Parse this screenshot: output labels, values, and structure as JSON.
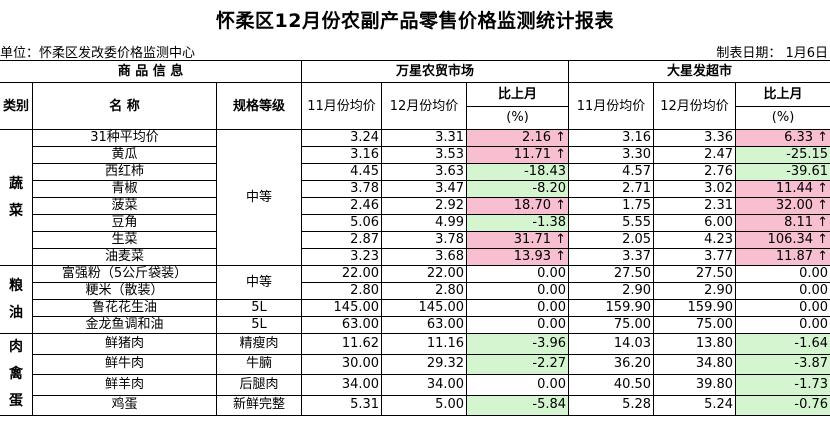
{
  "title": "怀柔区12月份农副产品零售价格监测统计报表",
  "unit": "单位：怀柔区发改委价格监测中心",
  "date": "制表日期：  1月6日",
  "headers": {
    "product_info": "商 品 信 息",
    "market1": "万星农贸市场",
    "market2": "大星发超市",
    "category": "类别",
    "name": "名 称",
    "grade": "规格等级",
    "nov_price": "11月份均价",
    "dec_price": "12月份均价",
    "change_line1": "比上月",
    "change_line2": "(%)"
  },
  "categories": {
    "veg": [
      "蔬",
      "菜"
    ],
    "grain": [
      "粮",
      "油"
    ],
    "meat": [
      "肉",
      "禽",
      "蛋"
    ]
  },
  "grades": {
    "veg": "中等",
    "grain": "中等"
  },
  "rows": [
    {
      "name": "31种平均价",
      "grade": "",
      "m1_nov": "3.24",
      "m1_dec": "3.31",
      "m1_chg": "2.16 ↑",
      "m2_nov": "3.16",
      "m2_dec": "3.36",
      "m2_chg": "6.33 ↑"
    },
    {
      "name": "黄瓜",
      "grade": "",
      "m1_nov": "3.16",
      "m1_dec": "3.53",
      "m1_chg": "11.71 ↑",
      "m2_nov": "3.30",
      "m2_dec": "2.47",
      "m2_chg": "-25.15"
    },
    {
      "name": "西红柿",
      "grade": "",
      "m1_nov": "4.45",
      "m1_dec": "3.63",
      "m1_chg": "-18.43",
      "m2_nov": "4.57",
      "m2_dec": "2.76",
      "m2_chg": "-39.61"
    },
    {
      "name": "青椒",
      "grade": "",
      "m1_nov": "3.78",
      "m1_dec": "3.47",
      "m1_chg": "-8.20",
      "m2_nov": "2.71",
      "m2_dec": "3.02",
      "m2_chg": "11.44 ↑"
    },
    {
      "name": "菠菜",
      "grade": "",
      "m1_nov": "2.46",
      "m1_dec": "2.92",
      "m1_chg": "18.70 ↑",
      "m2_nov": "1.75",
      "m2_dec": "2.31",
      "m2_chg": "32.00 ↑"
    },
    {
      "name": "豆角",
      "grade": "",
      "m1_nov": "5.06",
      "m1_dec": "4.99",
      "m1_chg": "-1.38",
      "m2_nov": "5.55",
      "m2_dec": "6.00",
      "m2_chg": "8.11 ↑"
    },
    {
      "name": "生菜",
      "grade": "",
      "m1_nov": "2.87",
      "m1_dec": "3.78",
      "m1_chg": "31.71 ↑",
      "m2_nov": "2.05",
      "m2_dec": "4.23",
      "m2_chg": "106.34 ↑"
    },
    {
      "name": "油麦菜",
      "grade": "",
      "m1_nov": "3.23",
      "m1_dec": "3.68",
      "m1_chg": "13.93 ↑",
      "m2_nov": "3.37",
      "m2_dec": "3.77",
      "m2_chg": "11.87 ↑"
    },
    {
      "name": "富强粉（5公斤袋装）",
      "grade": "",
      "m1_nov": "22.00",
      "m1_dec": "22.00",
      "m1_chg": "0.00",
      "m2_nov": "27.50",
      "m2_dec": "27.50",
      "m2_chg": "0.00"
    },
    {
      "name": "粳米（散装）",
      "grade": "",
      "m1_nov": "2.80",
      "m1_dec": "2.80",
      "m1_chg": "0.00",
      "m2_nov": "2.90",
      "m2_dec": "2.90",
      "m2_chg": "0.00"
    },
    {
      "name": "鲁花花生油",
      "grade": "5L",
      "m1_nov": "145.00",
      "m1_dec": "145.00",
      "m1_chg": "0.00",
      "m2_nov": "159.90",
      "m2_dec": "159.90",
      "m2_chg": "0.00"
    },
    {
      "name": "金龙鱼调和油",
      "grade": "5L",
      "m1_nov": "63.00",
      "m1_dec": "63.00",
      "m1_chg": "0.00",
      "m2_nov": "75.00",
      "m2_dec": "75.00",
      "m2_chg": "0.00"
    },
    {
      "name": "鲜猪肉",
      "grade": "精瘦肉",
      "m1_nov": "11.62",
      "m1_dec": "11.16",
      "m1_chg": "-3.96",
      "m2_nov": "14.03",
      "m2_dec": "13.80",
      "m2_chg": "-1.64"
    },
    {
      "name": "鲜牛肉",
      "grade": "牛腩",
      "m1_nov": "30.00",
      "m1_dec": "29.32",
      "m1_chg": "-2.27",
      "m2_nov": "36.20",
      "m2_dec": "34.80",
      "m2_chg": "-3.87"
    },
    {
      "name": "鲜羊肉",
      "grade": "后腿肉",
      "m1_nov": "34.00",
      "m1_dec": "34.00",
      "m1_chg": "0.00",
      "m2_nov": "40.50",
      "m2_dec": "39.80",
      "m2_chg": "-1.73"
    },
    {
      "name": "鸡蛋",
      "grade": "新鲜完整",
      "m1_nov": "5.31",
      "m1_dec": "5.00",
      "m1_chg": "-5.84",
      "m2_nov": "5.28",
      "m2_dec": "5.24",
      "m2_chg": "-0.76"
    }
  ],
  "colors": {
    "increase": "#f8bfd1",
    "decrease": "#d5f5d0"
  }
}
